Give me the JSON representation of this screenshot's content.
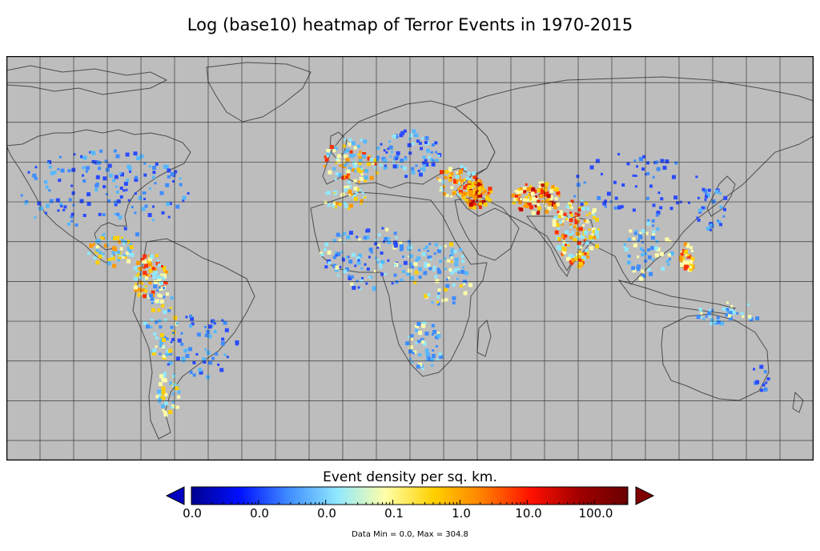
{
  "title": "Log (base10) heatmap of Terror Events in 1970-2015",
  "colorbar": {
    "label": "Event density per sq. km.",
    "ticks": [
      "0.0",
      "0.0",
      "0.0",
      "0.1",
      "1.0",
      "10.0",
      "100.0"
    ],
    "colors": [
      "#00008f",
      "#0010ff",
      "#3f8cff",
      "#8fe8ff",
      "#ffffa8",
      "#ffd000",
      "#ff8000",
      "#ff1000",
      "#a00000",
      "#6a0000"
    ]
  },
  "data_range": "Data Min = 0.0, Max = 304.8",
  "map": {
    "background": "#bdbdbd",
    "projection": "equirectangular",
    "grid": true
  },
  "chart_data": {
    "type": "heatmap",
    "title": "Log (base10) heatmap of Terror Events in 1970-2015",
    "colorbar_label": "Event density per sq. km.",
    "scale": "log10",
    "colorbar_ticks": [
      "0.0",
      "0.0",
      "0.0",
      "0.1",
      "1.0",
      "10.0",
      "100.0"
    ],
    "data_min": 0.0,
    "data_max": 304.8,
    "hotspots": [
      {
        "region": "Iraq",
        "level": "very high"
      },
      {
        "region": "Pakistan / Afghanistan",
        "level": "very high"
      },
      {
        "region": "India",
        "level": "high"
      },
      {
        "region": "Colombia",
        "level": "high"
      },
      {
        "region": "Peru",
        "level": "high"
      },
      {
        "region": "Central America",
        "level": "high"
      },
      {
        "region": "Philippines",
        "level": "high"
      },
      {
        "region": "Northern Ireland / UK",
        "level": "high"
      },
      {
        "region": "Spain",
        "level": "high"
      },
      {
        "region": "Turkey",
        "level": "high"
      },
      {
        "region": "Israel / Lebanon / Syria",
        "level": "high"
      },
      {
        "region": "Sri Lanka",
        "level": "high"
      },
      {
        "region": "Nigeria",
        "level": "medium"
      },
      {
        "region": "Somalia",
        "level": "medium"
      },
      {
        "region": "South Africa",
        "level": "medium"
      },
      {
        "region": "Algeria",
        "level": "medium"
      }
    ]
  }
}
